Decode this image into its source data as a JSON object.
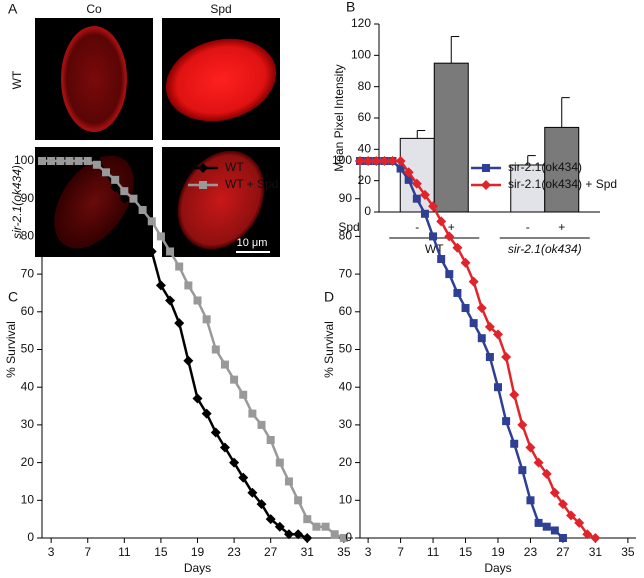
{
  "image_panel": {
    "label": "A",
    "columns": [
      "Co",
      "Spd"
    ],
    "rows": [
      "WT",
      "sir-2.1(ok434)"
    ],
    "scale_bar": "10 μm"
  },
  "chart_data": [
    {
      "type": "bar",
      "panel_label": "B",
      "ylabel": "Mean Pixel Intensity",
      "group_label": "Spd",
      "categories": [
        "WT",
        "sir-2.1(ok434)"
      ],
      "series": [
        {
          "name": "-",
          "color": "#e2e3e8",
          "values": [
            47,
            30
          ],
          "errors": [
            5,
            6
          ]
        },
        {
          "name": "+",
          "color": "#7a7a7a",
          "values": [
            95,
            54
          ],
          "errors": [
            17,
            19
          ]
        }
      ],
      "ylim": [
        0,
        120
      ],
      "yticks": [
        0,
        20,
        40,
        60,
        80,
        100,
        120
      ]
    },
    {
      "type": "line",
      "panel_label": "C",
      "xlabel": "Days",
      "ylabel": "% Survival",
      "legend": "top-right",
      "series": [
        {
          "name": "WT",
          "color": "#000000",
          "marker": "diamond",
          "x": [
            2,
            3,
            4,
            5,
            6,
            7,
            8,
            9,
            10,
            11,
            12,
            13,
            14,
            15,
            16,
            17,
            18,
            19,
            20,
            21,
            22,
            23,
            24,
            25,
            26,
            27,
            28,
            29,
            30,
            31
          ],
          "values": [
            100,
            100,
            100,
            100,
            100,
            100,
            100,
            97,
            93,
            90,
            89,
            83,
            76,
            67,
            63,
            57,
            47,
            37,
            33,
            28,
            24,
            20,
            16,
            12,
            9,
            5,
            3,
            1,
            1,
            0
          ]
        },
        {
          "name": "WT + Spd",
          "color": "#999999",
          "marker": "square",
          "x": [
            2,
            3,
            4,
            5,
            6,
            7,
            8,
            9,
            10,
            11,
            12,
            13,
            14,
            15,
            16,
            17,
            18,
            19,
            20,
            21,
            22,
            23,
            24,
            25,
            26,
            27,
            28,
            29,
            30,
            31,
            32,
            33,
            34,
            35
          ],
          "values": [
            100,
            100,
            100,
            100,
            100,
            100,
            99,
            97,
            95,
            92,
            90,
            87,
            84,
            80,
            76,
            72,
            67,
            63,
            58,
            50,
            46,
            42,
            38,
            33,
            30,
            26,
            20,
            15,
            10,
            5,
            3,
            3,
            1,
            0
          ]
        }
      ],
      "xlim": [
        2,
        36
      ],
      "xticks": [
        3,
        7,
        11,
        15,
        19,
        23,
        27,
        31,
        35
      ],
      "ylim": [
        0,
        100
      ],
      "yticks": [
        0,
        10,
        20,
        30,
        40,
        50,
        60,
        70,
        80,
        90,
        100
      ]
    },
    {
      "type": "line",
      "panel_label": "D",
      "xlabel": "Days",
      "ylabel": "% Survival",
      "legend": "top-right",
      "series": [
        {
          "name": "sir-2.1(ok434)",
          "color": "#2e3f94",
          "marker": "square",
          "x": [
            2,
            3,
            4,
            5,
            6,
            7,
            8,
            9,
            10,
            11,
            12,
            13,
            14,
            15,
            16,
            17,
            18,
            19,
            20,
            21,
            22,
            23,
            24,
            25,
            26,
            27
          ],
          "values": [
            100,
            100,
            100,
            100,
            100,
            98,
            95,
            90,
            86,
            80,
            74,
            70,
            65,
            61,
            57,
            53,
            48,
            40,
            31,
            25,
            18,
            10,
            4,
            3,
            2,
            0
          ]
        },
        {
          "name": "sir-2.1(ok434) + Spd",
          "color": "#e0242b",
          "marker": "diamond",
          "x": [
            2,
            3,
            4,
            5,
            6,
            7,
            8,
            9,
            10,
            11,
            12,
            13,
            14,
            15,
            16,
            17,
            18,
            19,
            20,
            21,
            22,
            23,
            24,
            25,
            26,
            27,
            28,
            29,
            30,
            31
          ],
          "values": [
            100,
            100,
            100,
            100,
            100,
            100,
            97,
            94,
            91,
            88,
            84,
            80,
            77,
            73,
            68,
            61,
            56,
            54,
            48,
            38,
            30,
            24,
            20,
            17,
            12,
            9,
            6,
            4,
            1,
            0
          ]
        }
      ],
      "xlim": [
        2,
        36
      ],
      "xticks": [
        3,
        7,
        11,
        15,
        19,
        23,
        27,
        31,
        35
      ],
      "ylim": [
        0,
        100
      ],
      "yticks": [
        0,
        10,
        20,
        30,
        40,
        50,
        60,
        70,
        80,
        90,
        100
      ]
    }
  ]
}
